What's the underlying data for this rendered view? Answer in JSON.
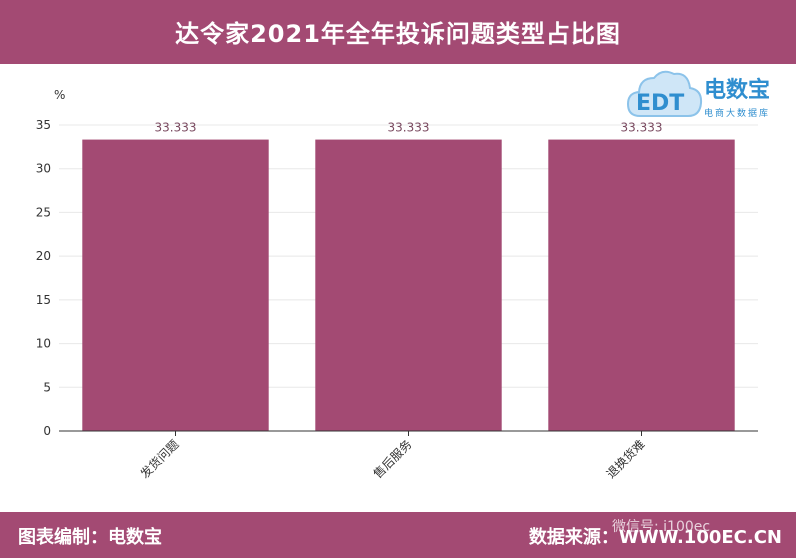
{
  "header": {
    "title": "达令家2021年全年投诉问题类型占比图"
  },
  "logo": {
    "text": "电数宝",
    "subtitle": "电商大数据库",
    "mark": "EDT"
  },
  "footer": {
    "left": "图表编制：电数宝",
    "right": "数据来源：WWW.100EC.CN",
    "watermark": "微信号: i100ec"
  },
  "colors": {
    "bar": "#a34a73",
    "band": "#a34a73",
    "axis": "#333333",
    "grid": "#e8e8e8",
    "label": "#7a4a60"
  },
  "chart_data": {
    "type": "bar",
    "categories": [
      "发货问题",
      "售后服务",
      "退换货难"
    ],
    "values": [
      33.333,
      33.333,
      33.333
    ],
    "data_labels": [
      "33.333",
      "33.333",
      "33.333"
    ],
    "unit": "%",
    "title": "达令家2021年全年投诉问题类型占比图",
    "xlabel": "",
    "ylabel": "%",
    "ylim": [
      0,
      35
    ],
    "yticks": [
      0,
      5,
      10,
      15,
      20,
      25,
      30,
      35
    ],
    "grid": true,
    "legend": "none"
  }
}
